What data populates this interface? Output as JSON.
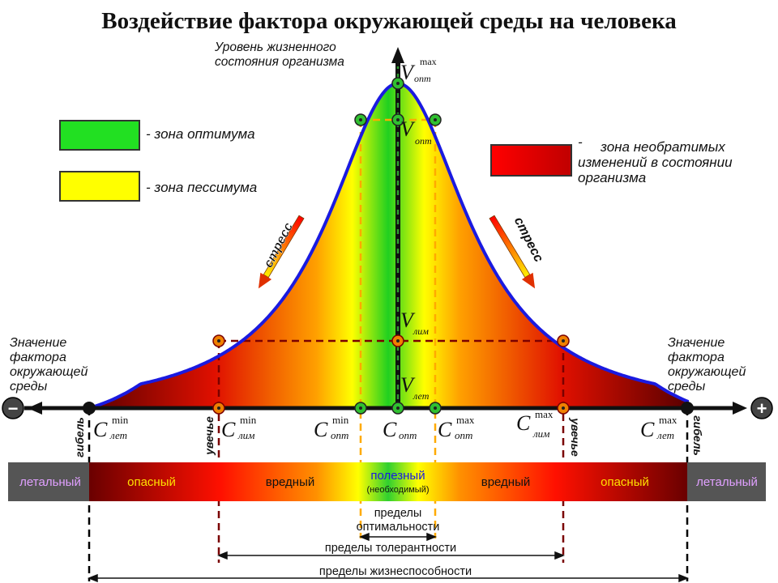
{
  "title": "Воздействие фактора окружающей среды на человека",
  "y_axis_label": [
    "Уровень жизненного",
    "состояния организма"
  ],
  "x_axis_label": [
    "Значение",
    "фактора",
    "окружающей",
    "среды"
  ],
  "minus_sign": "−",
  "plus_sign": "+",
  "legend": {
    "optimum": "- зона оптимума",
    "pessimum": "- зона пессимума",
    "irreversible_dash": "-",
    "irreversible": [
      "зона необратимых",
      "изменений в состоянии",
      "организма"
    ],
    "colors": {
      "optimum": "#22e022",
      "pessimum": "#ffff00",
      "irreversible": "#e00000"
    }
  },
  "stress_label": "стресс",
  "v_labels": {
    "V_main": "V",
    "opt_max_sub": "опт",
    "opt_max_sup": "max",
    "opt_sub": "опт",
    "lim_sub": "лим",
    "let_sub": "лет"
  },
  "c_labels": {
    "C": "C",
    "let_min": [
      "min",
      "лет"
    ],
    "lim_min": [
      "min",
      "лим"
    ],
    "opt_min": [
      "min",
      "опт"
    ],
    "opt": [
      "",
      "опт"
    ],
    "opt_max": [
      "max",
      "опт"
    ],
    "lim_max": [
      "max",
      "лим"
    ],
    "let_max": [
      "max",
      "лет"
    ]
  },
  "death_label": "гибель",
  "wither_label": "увечье",
  "zones": [
    "летальный",
    "опасный",
    "вредный",
    "полезный",
    "(необходимый)",
    "вредный",
    "опасный",
    "летальный"
  ],
  "limits": {
    "optimality": [
      "пределы",
      "оптимальности"
    ],
    "tolerance": "пределы толерантности",
    "viability": "пределы жизнеспособности"
  }
}
